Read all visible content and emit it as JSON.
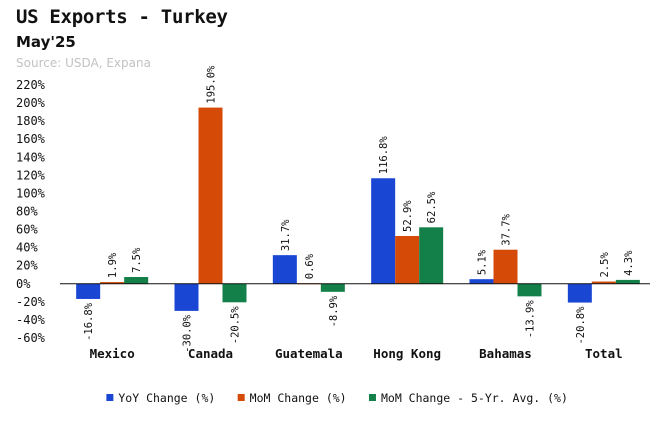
{
  "title": "US Exports - Turkey",
  "subtitle": "May'25",
  "source": "Source: USDA, Expana",
  "chart_data": {
    "type": "bar",
    "categories": [
      "Mexico",
      "Canada",
      "Guatemala",
      "Hong Kong",
      "Bahamas",
      "Total"
    ],
    "series": [
      {
        "name": "YoY Change (%)",
        "color": "#1a46d4",
        "values": [
          -16.8,
          -30.0,
          31.7,
          116.8,
          5.1,
          -20.8
        ],
        "labels": [
          "-16.8%",
          "-30.0%",
          "31.7%",
          "116.8%",
          "5.1%",
          "-20.8%"
        ]
      },
      {
        "name": "MoM Change (%)",
        "color": "#d44a06",
        "values": [
          1.9,
          195.0,
          0.6,
          52.9,
          37.7,
          2.5
        ],
        "labels": [
          "1.9%",
          "195.0%",
          "0.6%",
          "52.9%",
          "37.7%",
          "2.5%"
        ]
      },
      {
        "name": "MoM Change - 5-Yr. Avg. (%)",
        "color": "#138049",
        "values": [
          7.5,
          -20.5,
          -8.9,
          62.5,
          -13.9,
          4.3
        ],
        "labels": [
          "7.5%",
          "-20.5%",
          "-8.9%",
          "62.5%",
          "-13.9%",
          "4.3%"
        ]
      }
    ],
    "ylim": [
      -60,
      220
    ],
    "yticks": [
      -60,
      -40,
      -20,
      0,
      20,
      40,
      60,
      80,
      100,
      120,
      140,
      160,
      180,
      200,
      220
    ],
    "ytick_labels": [
      "-60%",
      "-40%",
      "-20%",
      "0%",
      "20%",
      "40%",
      "60%",
      "80%",
      "100%",
      "120%",
      "140%",
      "160%",
      "180%",
      "200%",
      "220%"
    ],
    "xlabel": "",
    "ylabel": "",
    "grid": false,
    "legend_position": "bottom"
  }
}
